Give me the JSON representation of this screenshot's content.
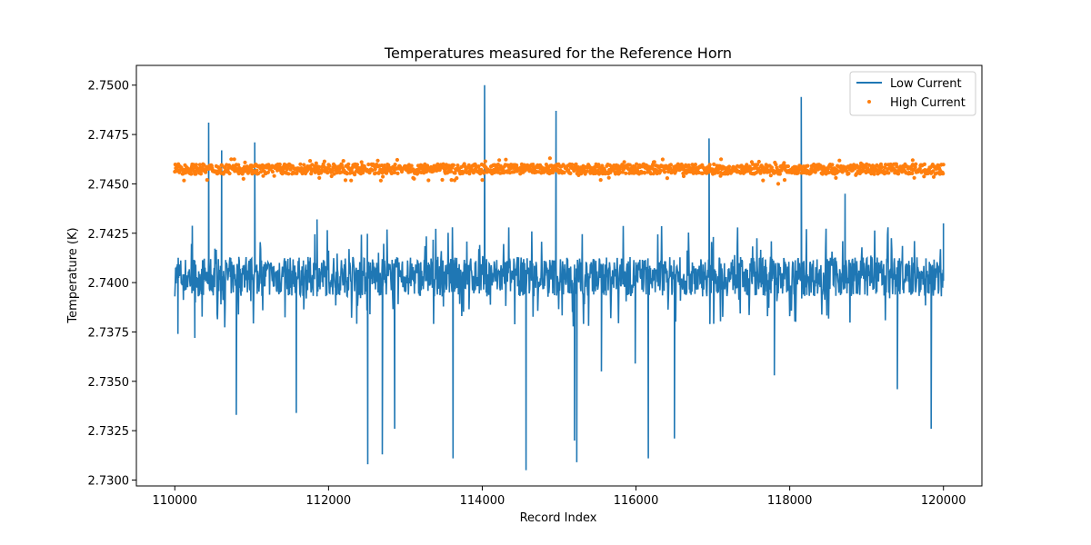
{
  "chart_data": {
    "type": "line",
    "title": "Temperatures measured for the Reference Horn",
    "xlabel": "Record Index",
    "ylabel": "Temperature (K)",
    "xlim": [
      109500,
      120500
    ],
    "ylim": [
      2.7297,
      2.751
    ],
    "x_ticks": [
      110000,
      112000,
      114000,
      116000,
      118000,
      120000
    ],
    "x_tick_labels": [
      "110000",
      "112000",
      "114000",
      "116000",
      "118000",
      "120000"
    ],
    "y_ticks": [
      2.73,
      2.7325,
      2.735,
      2.7375,
      2.74,
      2.7425,
      2.745,
      2.7475,
      2.75
    ],
    "y_tick_labels": [
      "2.7300",
      "2.7325",
      "2.7350",
      "2.7375",
      "2.7400",
      "2.7425",
      "2.7450",
      "2.7475",
      "2.7500"
    ],
    "legend_position": "top-right",
    "series": [
      {
        "name": "Low Current",
        "style": "line",
        "color": "#1f77b4",
        "x_range": [
          110000,
          120000
        ],
        "band": [
          2.7393,
          2.7413
        ],
        "baseline": 2.7403,
        "spikes": [
          {
            "x": 110040,
            "y": 2.7374
          },
          {
            "x": 110260,
            "y": 2.7372
          },
          {
            "x": 110440,
            "y": 2.7481
          },
          {
            "x": 110610,
            "y": 2.7467
          },
          {
            "x": 110800,
            "y": 2.7333
          },
          {
            "x": 111040,
            "y": 2.7471
          },
          {
            "x": 111580,
            "y": 2.7334
          },
          {
            "x": 111850,
            "y": 2.7432
          },
          {
            "x": 112510,
            "y": 2.7308
          },
          {
            "x": 112700,
            "y": 2.7313
          },
          {
            "x": 112860,
            "y": 2.7326
          },
          {
            "x": 113620,
            "y": 2.7311
          },
          {
            "x": 114030,
            "y": 2.75
          },
          {
            "x": 114570,
            "y": 2.7305
          },
          {
            "x": 114960,
            "y": 2.7487
          },
          {
            "x": 115200,
            "y": 2.732
          },
          {
            "x": 115230,
            "y": 2.7309
          },
          {
            "x": 115550,
            "y": 2.7355
          },
          {
            "x": 115990,
            "y": 2.7359
          },
          {
            "x": 116160,
            "y": 2.7311
          },
          {
            "x": 116500,
            "y": 2.7321
          },
          {
            "x": 116950,
            "y": 2.7473
          },
          {
            "x": 117800,
            "y": 2.7353
          },
          {
            "x": 118150,
            "y": 2.7494
          },
          {
            "x": 118720,
            "y": 2.7445
          },
          {
            "x": 119400,
            "y": 2.7346
          },
          {
            "x": 119840,
            "y": 2.7326
          },
          {
            "x": 120000,
            "y": 2.743
          }
        ]
      },
      {
        "name": "High Current",
        "style": "scatter",
        "color": "#ff7f0e",
        "x_range": [
          110000,
          120000
        ],
        "band": [
          2.7455,
          2.746
        ],
        "baseline": 2.7457,
        "outliers": [
          {
            "x": 110420,
            "y": 2.7452
          },
          {
            "x": 111150,
            "y": 2.7454
          },
          {
            "x": 111880,
            "y": 2.7453
          },
          {
            "x": 112430,
            "y": 2.7461
          },
          {
            "x": 113100,
            "y": 2.7453
          },
          {
            "x": 113600,
            "y": 2.7452
          },
          {
            "x": 114220,
            "y": 2.7462
          },
          {
            "x": 114880,
            "y": 2.7463
          },
          {
            "x": 115540,
            "y": 2.7452
          },
          {
            "x": 116230,
            "y": 2.7461
          },
          {
            "x": 117100,
            "y": 2.7454
          },
          {
            "x": 117850,
            "y": 2.745
          },
          {
            "x": 118600,
            "y": 2.7453
          },
          {
            "x": 119600,
            "y": 2.7462
          }
        ]
      }
    ]
  }
}
